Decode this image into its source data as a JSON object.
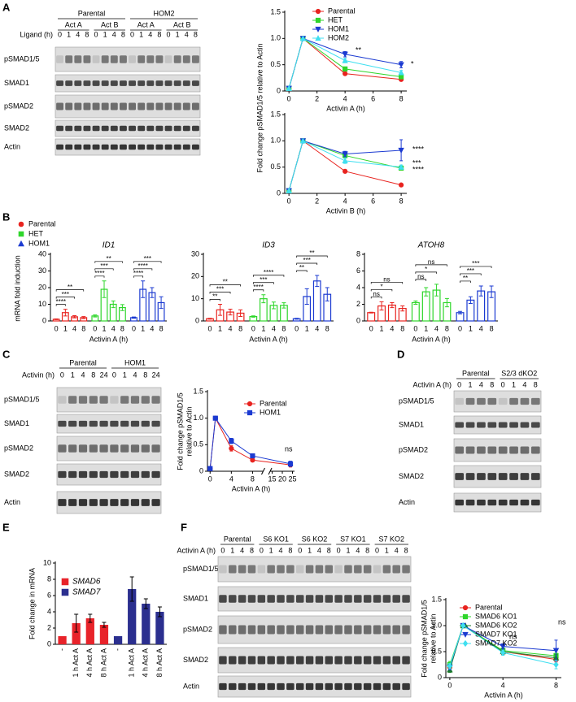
{
  "panel_labels": [
    "A",
    "B",
    "C",
    "D",
    "E",
    "F"
  ],
  "blots": [
    {
      "groups": [
        "Parental",
        "HOM2"
      ],
      "subgroups": [
        "Act A",
        "Act B",
        "Act A",
        "Act B"
      ],
      "lane_header": "Ligand (h)",
      "lanes": [
        "0",
        "1",
        "4",
        "8"
      ],
      "rows": [
        "pSMAD1/5",
        "SMAD1",
        "pSMAD2",
        "SMAD2",
        "Actin"
      ]
    },
    {
      "groups": [
        "Parental",
        "HOM1"
      ],
      "lane_header": "Activin (h)",
      "lanes": [
        "0",
        "1",
        "4",
        "8",
        "24"
      ],
      "rows": [
        "pSMAD1/5",
        "SMAD1",
        "pSMAD2",
        "SMAD2",
        "Actin"
      ]
    },
    {
      "groups": [
        "Parental",
        "S2/3 dKO2"
      ],
      "lane_header": "Activin A (h)",
      "lanes": [
        "0",
        "1",
        "4",
        "8"
      ],
      "rows": [
        "pSMAD1/5",
        "SMAD1",
        "pSMAD2",
        "SMAD2",
        "Actin"
      ]
    },
    {
      "groups": [
        "Parental",
        "S6 KO1",
        "S6 KO2",
        "S7 KO1",
        "S7 KO2"
      ],
      "lane_header": "Activin A (h)",
      "lanes": [
        "0",
        "1",
        "4",
        "8"
      ],
      "rows": [
        "pSMAD1/5",
        "SMAD1",
        "pSMAD2",
        "SMAD2",
        "Actin"
      ]
    }
  ],
  "chart_data": [
    {
      "type": "line",
      "x": [
        0,
        1,
        4,
        8
      ],
      "xlim": [
        -0.3,
        8.4
      ],
      "xticks": [
        0,
        2,
        4,
        6,
        8
      ],
      "ylim": [
        0,
        1.5
      ],
      "yticks": [
        0,
        0.5,
        {
          "value": 1,
          "label": "1.0"
        },
        1.5
      ],
      "xlabel": "Activin A (h)",
      "ylabel": "Fold change pSMAD1/5 relative to Actin",
      "series": [
        {
          "name": "Parental",
          "color": "#e8231f",
          "marker": "circle",
          "values": [
            0.05,
            1,
            0.33,
            0.22
          ],
          "errors": [
            0.01,
            0,
            0.02,
            0.02
          ]
        },
        {
          "name": "HET",
          "color": "#2fd62b",
          "marker": "square",
          "values": [
            0.05,
            1,
            0.42,
            0.27
          ],
          "errors": [
            0.01,
            0,
            0.03,
            0.03
          ]
        },
        {
          "name": "HOM1",
          "color": "#1b3ad1",
          "marker": "triangle-down",
          "values": [
            0.05,
            1,
            0.7,
            0.5
          ],
          "errors": [
            0.01,
            0,
            0.05,
            0.06
          ]
        },
        {
          "name": "HOM2",
          "color": "#3fdff0",
          "marker": "triangle-up",
          "values": [
            0.05,
            1,
            0.58,
            0.35
          ],
          "errors": [
            0.01,
            0,
            0.04,
            0.04
          ]
        }
      ],
      "annotations": [
        "**",
        "*"
      ]
    },
    {
      "type": "line",
      "x": [
        0,
        1,
        4,
        8
      ],
      "xlim": [
        -0.3,
        8.4
      ],
      "xticks": [
        0,
        2,
        4,
        6,
        8
      ],
      "ylim": [
        0,
        1.5
      ],
      "yticks": [
        0,
        0.5,
        {
          "value": 1,
          "label": "1.0"
        },
        1.5
      ],
      "xlabel": "Activin B (h)",
      "series": [
        {
          "color": "#e8231f",
          "marker": "circle",
          "values": [
            0.05,
            1,
            0.42,
            0.16
          ],
          "errors": [
            0.01,
            0,
            0.03,
            0.02
          ]
        },
        {
          "color": "#2fd62b",
          "marker": "square",
          "values": [
            0.05,
            1,
            0.72,
            0.48
          ],
          "errors": [
            0.01,
            0,
            0.05,
            0.04
          ]
        },
        {
          "color": "#1b3ad1",
          "marker": "triangle-down",
          "values": [
            0.05,
            1,
            0.75,
            0.82
          ],
          "errors": [
            0.01,
            0,
            0.05,
            0.2
          ]
        },
        {
          "color": "#3fdff0",
          "marker": "triangle-up",
          "values": [
            0.05,
            1,
            0.62,
            0.5
          ],
          "errors": [
            0.01,
            0,
            0.05,
            0.04
          ]
        }
      ],
      "annotations": [
        "****",
        "***",
        "****"
      ]
    },
    {
      "type": "grouped_bar",
      "title": "ID1",
      "categories": [
        "0",
        "1",
        "4",
        "8"
      ],
      "ylim": [
        0,
        40
      ],
      "yticks": [
        0,
        10,
        20,
        30,
        40
      ],
      "xlabel": "Activin A (h)",
      "ylabel": "mRNA fold induction",
      "series": [
        {
          "name": "Parental",
          "color": "#e8231f",
          "marker": "circle",
          "values": [
            1,
            5,
            2.5,
            2
          ],
          "errors": [
            0.2,
            2,
            0.7,
            0.6
          ]
        },
        {
          "name": "HET",
          "color": "#2fd62b",
          "marker": "square",
          "values": [
            3,
            19,
            10,
            8
          ],
          "errors": [
            0.6,
            5,
            2,
            1.8
          ]
        },
        {
          "name": "HOM1",
          "color": "#1b3ad1",
          "marker": "triangle-up",
          "values": [
            2,
            19,
            17,
            11
          ],
          "errors": [
            0.4,
            5,
            3,
            3.5
          ]
        }
      ],
      "significance": [
        [
          "**",
          "***",
          "****"
        ],
        [
          "**",
          "***",
          "****"
        ],
        [
          "***",
          "****",
          "****"
        ]
      ]
    },
    {
      "type": "grouped_bar",
      "title": "ID3",
      "categories": [
        "0",
        "1",
        "4",
        "8"
      ],
      "ylim": [
        0,
        30
      ],
      "yticks": [
        0,
        10,
        20,
        30
      ],
      "xlabel": "Activin A (h)",
      "series": [
        {
          "color": "#e8231f",
          "marker": "circle",
          "values": [
            1,
            5,
            4,
            3.5
          ],
          "errors": [
            0.2,
            2.5,
            1.3,
            1.5
          ]
        },
        {
          "color": "#2fd62b",
          "marker": "square",
          "values": [
            2,
            10,
            7,
            7
          ],
          "errors": [
            0.3,
            1.8,
            1.5,
            1.2
          ]
        },
        {
          "color": "#1b3ad1",
          "marker": "triangle-up",
          "values": [
            1,
            11,
            18,
            12
          ],
          "errors": [
            0.2,
            3.5,
            2.5,
            3
          ]
        }
      ],
      "significance": [
        [
          "**",
          "***",
          "**"
        ],
        [
          "****",
          "***",
          "****"
        ],
        [
          "**",
          "***",
          "**"
        ]
      ]
    },
    {
      "type": "grouped_bar",
      "title": "ATOH8",
      "categories": [
        "0",
        "1",
        "4",
        "8"
      ],
      "ylim": [
        0,
        8
      ],
      "yticks": [
        0,
        2,
        4,
        6,
        8
      ],
      "xlabel": "Activin A (h)",
      "series": [
        {
          "color": "#e8231f",
          "marker": "circle",
          "values": [
            1,
            1.8,
            1.9,
            1.5
          ],
          "errors": [
            0.05,
            0.5,
            0.3,
            0.3
          ]
        },
        {
          "color": "#2fd62b",
          "marker": "square",
          "values": [
            2.2,
            3.5,
            3.7,
            2.2
          ],
          "errors": [
            0.2,
            0.5,
            0.7,
            0.5
          ]
        },
        {
          "color": "#1b3ad1",
          "marker": "triangle-up",
          "values": [
            1,
            2.5,
            3.6,
            3.5
          ],
          "errors": [
            0.15,
            0.4,
            0.6,
            0.7
          ]
        }
      ],
      "significance": [
        [
          "ns",
          "*",
          "ns"
        ],
        [
          "ns",
          "*",
          "ns"
        ],
        [
          "***",
          "***",
          "**"
        ]
      ]
    },
    {
      "type": "line",
      "x": [
        0,
        1,
        4,
        8,
        24
      ],
      "xlim": [
        -0.5,
        26
      ],
      "xbreak": [
        10,
        14
      ],
      "xticks": [
        0,
        4,
        8,
        15,
        20,
        25
      ],
      "ylim": [
        0,
        1.5
      ],
      "yticks": [
        0,
        0.5,
        {
          "value": 1,
          "label": "1.0"
        },
        1.5
      ],
      "xlabel": "Activin A (h)",
      "ylabel": [
        "Fold change pSMAD1/5",
        "relative to Actin"
      ],
      "series": [
        {
          "name": "Parental",
          "color": "#e8231f",
          "marker": "circle",
          "values": [
            0.05,
            1,
            0.43,
            0.21,
            0.12
          ],
          "errors": [
            0.01,
            0,
            0.05,
            0.03,
            0.04
          ]
        },
        {
          "name": "HOM1",
          "color": "#1b3ad1",
          "marker": "square",
          "values": [
            0.05,
            1,
            0.57,
            0.29,
            0.14
          ],
          "errors": [
            0.01,
            0,
            0.05,
            0.02,
            0.05
          ]
        }
      ],
      "annotations": [
        "ns"
      ]
    },
    {
      "type": "block_bar",
      "categories": [
        "-",
        "1 h Act A",
        "4 h Act A",
        "8 h Act A"
      ],
      "ylim": [
        0,
        10
      ],
      "yticks": [
        0,
        2,
        4,
        6,
        8,
        10
      ],
      "ylabel": "Fold change in mRNA",
      "series": [
        {
          "name": "SMAD6",
          "color": "#e8232a",
          "values": [
            1,
            2.6,
            3.2,
            2.4
          ],
          "errors": [
            0,
            1.1,
            0.5,
            0.3
          ]
        },
        {
          "name": "SMAD7",
          "color": "#2b2f8f",
          "values": [
            1,
            6.8,
            5,
            4
          ],
          "errors": [
            0,
            1.5,
            0.6,
            0.6
          ]
        }
      ]
    },
    {
      "type": "line",
      "x": [
        0,
        1,
        4,
        8
      ],
      "xlim": [
        -0.3,
        8.4
      ],
      "xticks": [
        0,
        4,
        8
      ],
      "ylim": [
        0,
        1.5
      ],
      "yticks": [
        0,
        0.5,
        {
          "value": 1,
          "label": "1.0"
        },
        1.5
      ],
      "xlabel": "Activin A (h)",
      "ylabel": [
        "Fold change pSMAD1/5",
        "relative to Actin"
      ],
      "series": [
        {
          "name": "Parental",
          "color": "#e8231f",
          "marker": "circle",
          "values": [
            0.2,
            1,
            0.5,
            0.35
          ],
          "errors": [
            0.05,
            0,
            0.06,
            0.05
          ]
        },
        {
          "name": "SMAD6 KO1",
          "color": "#2fd62b",
          "marker": "square",
          "values": [
            0.25,
            1,
            0.52,
            0.42
          ],
          "errors": [
            0.06,
            0,
            0.05,
            0.05
          ]
        },
        {
          "name": "SMAD6 KO2",
          "color": "#1a7a2a",
          "marker": "triangle-up",
          "values": [
            0.15,
            1,
            0.5,
            0.38
          ],
          "errors": [
            0.05,
            0,
            0.05,
            0.06
          ]
        },
        {
          "name": "SMAD7 KO1",
          "color": "#1b3ad1",
          "marker": "triangle-down",
          "values": [
            0.2,
            1,
            0.6,
            0.52
          ],
          "errors": [
            0.05,
            0,
            0.05,
            0.2
          ]
        },
        {
          "name": "SMAD7 KO2",
          "color": "#3fdff0",
          "marker": "diamond",
          "values": [
            0.22,
            1,
            0.48,
            0.25
          ],
          "errors": [
            0.05,
            0,
            0.05,
            0.08
          ]
        }
      ],
      "annotations": [
        "ns",
        "ns"
      ]
    }
  ]
}
